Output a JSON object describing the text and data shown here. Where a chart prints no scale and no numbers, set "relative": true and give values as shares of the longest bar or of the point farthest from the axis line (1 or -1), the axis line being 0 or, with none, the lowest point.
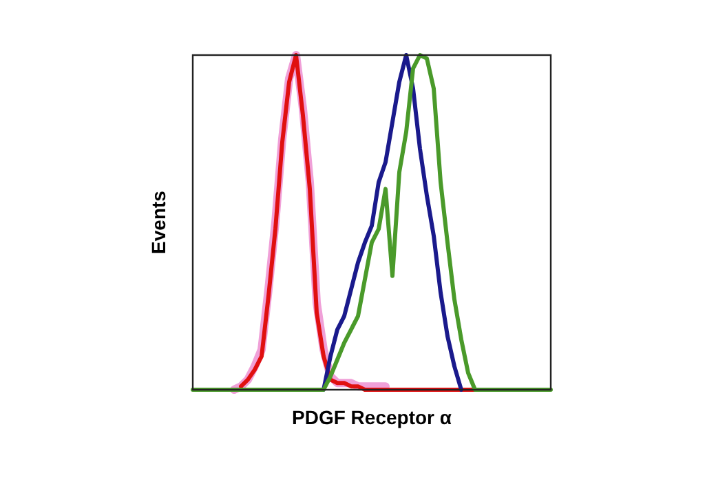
{
  "chart_data": {
    "type": "line",
    "relative": true,
    "xlabel": "PDGF Receptor α",
    "ylabel": "Events",
    "categories": [
      null,
      null,
      null,
      null,
      null,
      null,
      null,
      null,
      null,
      null,
      null,
      null,
      null,
      null,
      null,
      null,
      null,
      null,
      null,
      null,
      null,
      null,
      null,
      null,
      null,
      null,
      null,
      null,
      null,
      null,
      null,
      null,
      null,
      null,
      null,
      null,
      null,
      null,
      null,
      null,
      null,
      null,
      null,
      null,
      null,
      null,
      null,
      null,
      null,
      null,
      null,
      null,
      null
    ],
    "series": [
      {
        "color": "#f0a0d8",
        "values": [
          null,
          null,
          null,
          null,
          null,
          null,
          0,
          0.01,
          0.03,
          0.07,
          0.12,
          0.3,
          0.5,
          0.75,
          0.93,
          1.0,
          0.84,
          0.62,
          0.26,
          0.12,
          0.04,
          0.02,
          0.02,
          0.02,
          0.01,
          0.01,
          0.01,
          0.01,
          0.01,
          null,
          null,
          null,
          null,
          null,
          null,
          null,
          null,
          null,
          null,
          null,
          null,
          null,
          null,
          null,
          null,
          null,
          null,
          null,
          null,
          null,
          null,
          null,
          null
        ]
      },
      {
        "color": "#e01010",
        "values": [
          null,
          null,
          null,
          null,
          null,
          null,
          null,
          0.01,
          0.03,
          0.06,
          0.1,
          0.28,
          0.48,
          0.74,
          0.92,
          1.0,
          0.82,
          0.6,
          0.23,
          0.1,
          0.03,
          0.02,
          0.02,
          0.01,
          0.01,
          0,
          0,
          0,
          0,
          0,
          0,
          0,
          0,
          0,
          0,
          0,
          0,
          0,
          0,
          0,
          0,
          0,
          0,
          null,
          null,
          null,
          null,
          null,
          null,
          null,
          null,
          null,
          null
        ]
      },
      {
        "color": "#1a1a8c",
        "values": [
          null,
          null,
          null,
          null,
          null,
          null,
          null,
          null,
          null,
          null,
          null,
          null,
          null,
          null,
          null,
          null,
          null,
          null,
          null,
          0,
          0.1,
          0.18,
          0.22,
          0.3,
          0.38,
          0.44,
          0.49,
          0.62,
          0.68,
          0.8,
          0.92,
          1.0,
          0.9,
          0.72,
          0.58,
          0.46,
          0.29,
          0.16,
          0.07,
          0,
          null,
          null,
          null,
          null,
          null,
          null,
          null,
          null,
          null,
          null,
          null,
          null,
          null
        ]
      },
      {
        "color": "#4a9a2a",
        "values": [
          0,
          0,
          0,
          0,
          0,
          0,
          0,
          0,
          0,
          0,
          0,
          0,
          0,
          0,
          0,
          0,
          0,
          0,
          0,
          0,
          0.04,
          0.09,
          0.14,
          0.18,
          0.22,
          0.33,
          0.44,
          0.48,
          0.6,
          0.34,
          0.65,
          0.77,
          0.96,
          1.0,
          0.99,
          0.9,
          0.62,
          0.44,
          0.27,
          0.15,
          0.05,
          0,
          0,
          0,
          0,
          0,
          0,
          0,
          0,
          0,
          0,
          0,
          0
        ]
      }
    ]
  }
}
